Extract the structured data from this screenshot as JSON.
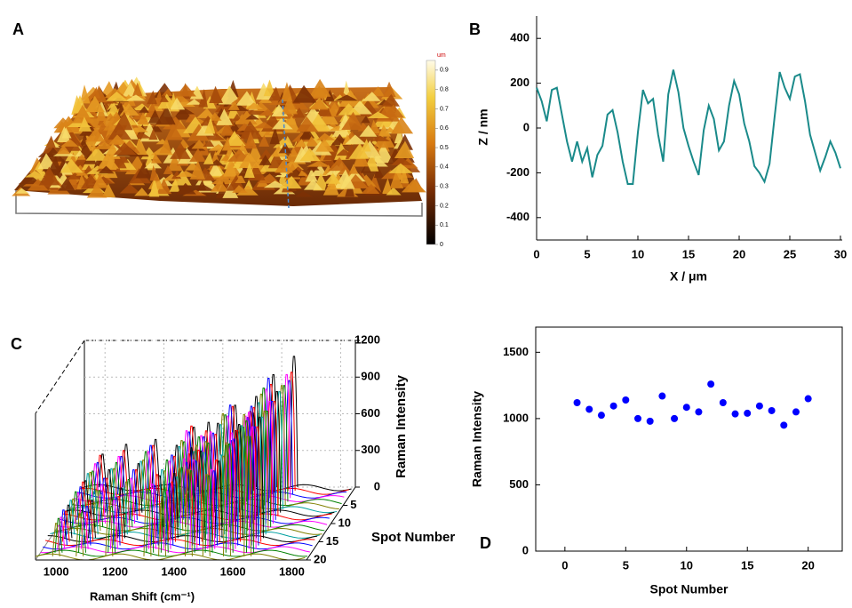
{
  "chart_data": [
    {
      "type": "image",
      "panel_label": "A",
      "colorbar_unit": "um",
      "colorbar_lim": [
        0,
        0.95
      ],
      "colorbar_ticks": [
        0,
        0.1,
        0.2,
        0.3,
        0.4,
        0.5,
        0.6,
        0.7,
        0.8,
        0.9
      ]
    },
    {
      "type": "line",
      "panel_label": "B",
      "xlabel": "X / μm",
      "ylabel": "Z / nm",
      "color": "#1a8a8a",
      "xlim": [
        0,
        30
      ],
      "xticks": [
        0,
        5,
        10,
        15,
        20,
        25,
        30
      ],
      "ylim": [
        -500,
        500
      ],
      "yticks": [
        -400,
        -200,
        0,
        200,
        400
      ],
      "x": [
        0,
        0.5,
        1,
        1.5,
        2,
        2.5,
        3,
        3.5,
        4,
        4.5,
        5,
        5.5,
        6,
        6.5,
        7,
        7.5,
        8,
        8.5,
        9,
        9.5,
        10,
        10.5,
        11,
        11.5,
        12,
        12.5,
        13,
        13.5,
        14,
        14.5,
        15,
        15.5,
        16,
        16.5,
        17,
        17.5,
        18,
        18.5,
        19,
        19.5,
        20,
        20.5,
        21,
        21.5,
        22,
        22.5,
        23,
        23.5,
        24,
        24.5,
        25,
        25.5,
        26,
        26.5,
        27,
        27.5,
        28,
        28.5,
        29,
        29.5,
        30
      ],
      "values": [
        180,
        120,
        30,
        170,
        180,
        60,
        -60,
        -150,
        -60,
        -150,
        -90,
        -220,
        -120,
        -80,
        60,
        80,
        -20,
        -150,
        -250,
        -250,
        -20,
        170,
        110,
        130,
        -30,
        -150,
        150,
        260,
        160,
        0,
        -80,
        -150,
        -210,
        -10,
        100,
        40,
        -100,
        -60,
        100,
        210,
        150,
        20,
        -60,
        -170,
        -200,
        -240,
        -160,
        50,
        250,
        180,
        130,
        230,
        240,
        120,
        -30,
        -110,
        -190,
        -130,
        -60,
        -110,
        -180
      ]
    },
    {
      "type": "waterfall3d",
      "panel_label": "C",
      "xlabel": "Raman Shift (cm⁻¹)",
      "zlabel": "Raman Intensity",
      "ylabel": "Spot Number",
      "xlim": [
        930,
        1850
      ],
      "xticks": [
        1000,
        1200,
        1400,
        1600,
        1800
      ],
      "zlim": [
        0,
        1200
      ],
      "zticks": [
        0,
        300,
        600,
        900,
        1200
      ],
      "ylim": [
        0,
        20
      ],
      "yticks": [
        5,
        10,
        15,
        20
      ],
      "x": [
        1000,
        1080,
        1180,
        1310,
        1360,
        1450,
        1510,
        1580,
        1650
      ],
      "series": [
        {
          "color": "#000000",
          "values": [
            300,
            380,
            420,
            520,
            560,
            700,
            640,
            950,
            1100
          ]
        },
        {
          "color": "#ff0000",
          "values": [
            320,
            360,
            400,
            560,
            520,
            720,
            680,
            900,
            1000
          ]
        },
        {
          "color": "#0000ff",
          "values": [
            290,
            340,
            430,
            540,
            500,
            760,
            660,
            980,
            960
          ]
        },
        {
          "color": "#ff00ff",
          "values": [
            310,
            370,
            410,
            580,
            540,
            700,
            700,
            920,
            1040
          ]
        },
        {
          "color": "#008000",
          "values": [
            280,
            350,
            440,
            520,
            560,
            740,
            640,
            960,
            980
          ]
        },
        {
          "color": "#808000",
          "values": [
            300,
            330,
            400,
            560,
            520,
            780,
            680,
            940,
            1010
          ]
        },
        {
          "color": "#00a0a0",
          "values": [
            320,
            360,
            420,
            540,
            500,
            720,
            660,
            900,
            990
          ]
        },
        {
          "color": "#000000",
          "values": [
            290,
            380,
            430,
            580,
            560,
            760,
            700,
            980,
            1020
          ]
        },
        {
          "color": "#ff0000",
          "values": [
            310,
            340,
            410,
            520,
            540,
            700,
            640,
            920,
            970
          ]
        },
        {
          "color": "#0000ff",
          "values": [
            300,
            370,
            440,
            560,
            500,
            740,
            680,
            960,
            1000
          ]
        },
        {
          "color": "#ff00ff",
          "values": [
            280,
            350,
            400,
            540,
            560,
            780,
            660,
            940,
            1030
          ]
        },
        {
          "color": "#008000",
          "values": [
            320,
            330,
            420,
            580,
            520,
            720,
            700,
            900,
            980
          ]
        },
        {
          "color": "#808000",
          "values": [
            290,
            360,
            430,
            520,
            540,
            760,
            640,
            980,
            1010
          ]
        },
        {
          "color": "#00a0a0",
          "values": [
            310,
            380,
            410,
            560,
            500,
            700,
            680,
            920,
            990
          ]
        },
        {
          "color": "#000000",
          "values": [
            300,
            340,
            440,
            540,
            560,
            740,
            660,
            960,
            1020
          ]
        },
        {
          "color": "#ff0000",
          "values": [
            280,
            370,
            400,
            580,
            520,
            780,
            700,
            940,
            970
          ]
        },
        {
          "color": "#0000ff",
          "values": [
            320,
            350,
            420,
            520,
            540,
            720,
            640,
            900,
            1000
          ]
        },
        {
          "color": "#ff00ff",
          "values": [
            290,
            330,
            430,
            560,
            500,
            760,
            680,
            980,
            1030
          ]
        },
        {
          "color": "#008000",
          "values": [
            310,
            360,
            410,
            540,
            560,
            700,
            660,
            920,
            980
          ]
        },
        {
          "color": "#808000",
          "values": [
            300,
            380,
            440,
            580,
            520,
            740,
            700,
            960,
            1010
          ]
        }
      ]
    },
    {
      "type": "scatter",
      "panel_label": "D",
      "xlabel": "Spot Number",
      "ylabel": "Raman Intensity",
      "color": "#0000ff",
      "xlim": [
        -2.4,
        22.8
      ],
      "xticks": [
        0,
        5,
        10,
        15,
        20
      ],
      "ylim": [
        0,
        1690
      ],
      "yticks": [
        0,
        500,
        1000,
        1500
      ],
      "x": [
        1,
        2,
        3,
        4,
        5,
        6,
        7,
        8,
        9,
        10,
        11,
        12,
        13,
        14,
        15,
        16,
        17,
        18,
        19,
        20
      ],
      "values": [
        1120,
        1070,
        1025,
        1095,
        1140,
        1000,
        980,
        1170,
        1000,
        1085,
        1050,
        1260,
        1120,
        1035,
        1040,
        1095,
        1060,
        950,
        1050,
        1150
      ]
    }
  ]
}
